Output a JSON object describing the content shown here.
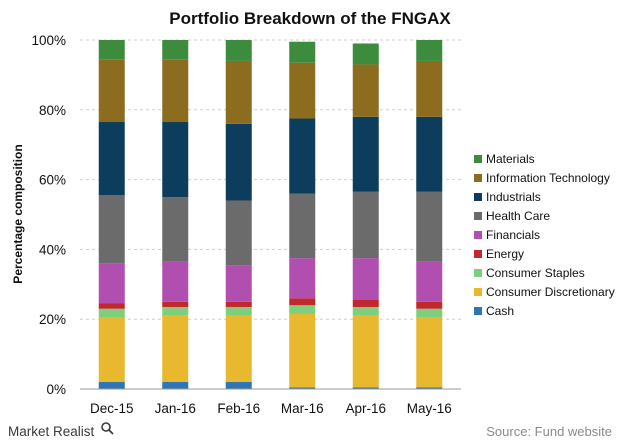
{
  "chart_data": {
    "type": "bar",
    "stacked": true,
    "title": "Portfolio Breakdown of the FNGAX",
    "xlabel": "",
    "ylabel": "Percentage composition",
    "ylim": [
      0,
      100
    ],
    "y_tick_labels": [
      "0%",
      "20%",
      "40%",
      "60%",
      "80%",
      "100%"
    ],
    "grid": true,
    "legend_position": "right",
    "categories": [
      "Dec-15",
      "Jan-16",
      "Feb-16",
      "Mar-16",
      "Apr-16",
      "May-16"
    ],
    "series": [
      {
        "name": "Cash",
        "color": "#2e75b6",
        "values": [
          2.0,
          2.0,
          2.0,
          0.5,
          0.5,
          0.5
        ]
      },
      {
        "name": "Consumer Discretionary",
        "color": "#e8b92e",
        "values": [
          18.5,
          19.0,
          19.0,
          21.0,
          20.5,
          20.0
        ]
      },
      {
        "name": "Consumer Staples",
        "color": "#7dcf7d",
        "values": [
          2.5,
          2.5,
          2.5,
          2.5,
          2.5,
          2.5
        ]
      },
      {
        "name": "Energy",
        "color": "#c0282d",
        "values": [
          1.5,
          1.5,
          1.5,
          2.0,
          2.0,
          2.0
        ]
      },
      {
        "name": "Financials",
        "color": "#b04fb0",
        "values": [
          11.5,
          11.5,
          10.5,
          11.5,
          12.0,
          11.5
        ]
      },
      {
        "name": "Health Care",
        "color": "#6b6b6b",
        "values": [
          19.5,
          18.5,
          18.5,
          18.5,
          19.0,
          20.0
        ]
      },
      {
        "name": "Industrials",
        "color": "#0d3d5c",
        "values": [
          21.0,
          21.5,
          22.0,
          21.5,
          21.5,
          21.5
        ]
      },
      {
        "name": "Information Technology",
        "color": "#8c6d1f",
        "values": [
          18.0,
          18.0,
          18.0,
          16.0,
          15.0,
          16.0
        ]
      },
      {
        "name": "Materials",
        "color": "#3d8c3d",
        "values": [
          5.5,
          5.5,
          6.0,
          6.0,
          6.0,
          6.0
        ]
      }
    ]
  },
  "footer": {
    "brand_label": "Market Realist",
    "source_label": "Source: Fund website"
  }
}
